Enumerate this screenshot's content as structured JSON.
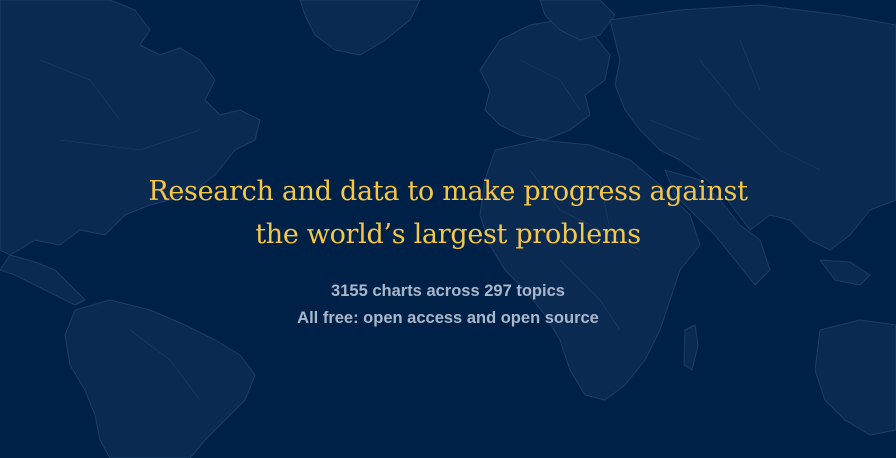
{
  "hero": {
    "headline_line1": "Research and data to make progress against",
    "headline_line2": "the world’s largest problems",
    "stats": "3155 charts across 297 topics",
    "tagline": "All free: open access and open source"
  },
  "colors": {
    "background": "#002147",
    "headline": "#f6c744",
    "subtext": "#a9b7cc",
    "map_outline": "#1c3d66"
  }
}
